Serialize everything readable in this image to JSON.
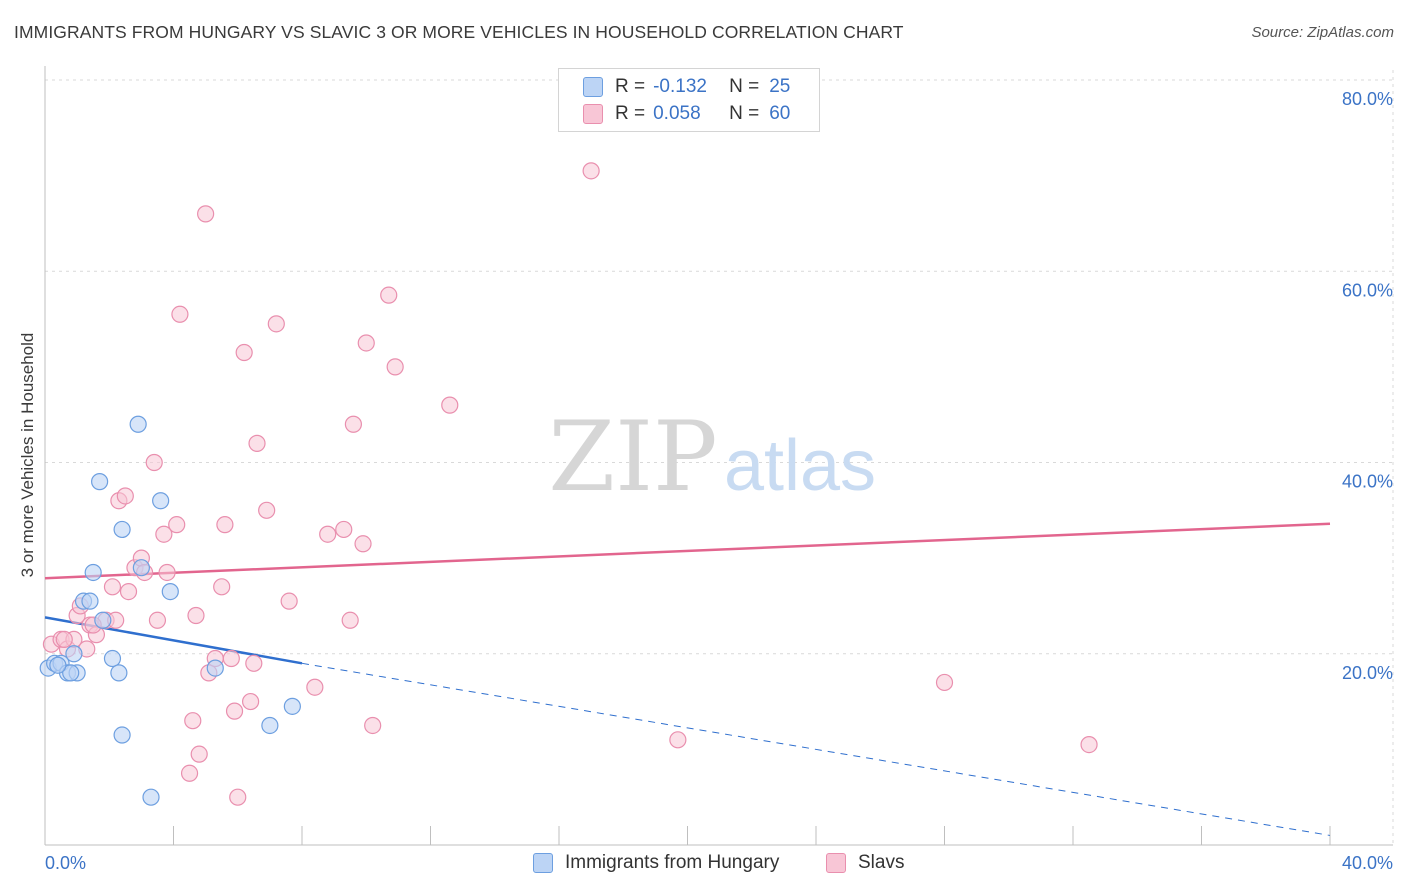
{
  "title": "IMMIGRANTS FROM HUNGARY VS SLAVIC 3 OR MORE VEHICLES IN HOUSEHOLD CORRELATION CHART",
  "source": "Source: ZipAtlas.com",
  "watermark": {
    "zip": "ZIP",
    "atlas": "atlas"
  },
  "legend": {
    "r_label": "R =",
    "n_label": "N =",
    "rows": [
      {
        "r": "-0.132",
        "n": "25"
      },
      {
        "r": "0.058",
        "n": "60"
      }
    ]
  },
  "colors": {
    "hungary_fill": "#bcd4f5",
    "hungary_stroke": "#6d9fe0",
    "hungary_line": "#2f6fce",
    "slavs_fill": "#f8c6d6",
    "slavs_stroke": "#e98fae",
    "slavs_line": "#e2658e",
    "axis_text": "#3b73c6",
    "grid": "#d9d9d9"
  },
  "chart_data": {
    "type": "scatter",
    "title": "IMMIGRANTS FROM HUNGARY VS SLAVIC 3 OR MORE VEHICLES IN HOUSEHOLD CORRELATION CHART",
    "xlabel": "",
    "ylabel": "3 or more Vehicles in Household",
    "xlim": [
      0,
      40
    ],
    "ylim": [
      0,
      80
    ],
    "x_tick_labels": [
      "0.0%",
      "40.0%"
    ],
    "y_ticks": [
      20,
      40,
      60,
      80
    ],
    "y_tick_labels": [
      "20.0%",
      "40.0%",
      "60.0%",
      "80.0%"
    ],
    "grid": true,
    "series": [
      {
        "name": "Immigrants from Hungary",
        "r": -0.132,
        "n": 25,
        "points": [
          [
            0.1,
            18.5
          ],
          [
            0.3,
            19.0
          ],
          [
            0.5,
            19.0
          ],
          [
            0.7,
            18.0
          ],
          [
            0.9,
            20.0
          ],
          [
            1.0,
            18.0
          ],
          [
            1.2,
            25.5
          ],
          [
            1.5,
            28.5
          ],
          [
            1.7,
            38.0
          ],
          [
            1.8,
            23.5
          ],
          [
            2.1,
            19.5
          ],
          [
            2.3,
            18.0
          ],
          [
            2.4,
            11.5
          ],
          [
            2.9,
            44.0
          ],
          [
            3.0,
            29.0
          ],
          [
            3.3,
            5.0
          ],
          [
            3.6,
            36.0
          ],
          [
            3.9,
            26.5
          ],
          [
            5.3,
            18.5
          ],
          [
            7.0,
            12.5
          ],
          [
            7.7,
            14.5
          ],
          [
            2.4,
            33.0
          ],
          [
            1.4,
            25.5
          ],
          [
            0.8,
            18.0
          ],
          [
            0.4,
            18.8
          ]
        ],
        "trend": {
          "x0": 0,
          "y0": 23.8,
          "x1": 8,
          "y1": 19.0,
          "dashed_to": [
            40,
            1.0
          ]
        }
      },
      {
        "name": "Slavs",
        "r": 0.058,
        "n": 60,
        "points": [
          [
            0.2,
            21.0
          ],
          [
            0.5,
            21.5
          ],
          [
            0.7,
            20.5
          ],
          [
            0.9,
            21.5
          ],
          [
            1.0,
            24.0
          ],
          [
            1.1,
            25.0
          ],
          [
            1.3,
            20.5
          ],
          [
            1.4,
            23.0
          ],
          [
            1.6,
            22.0
          ],
          [
            1.9,
            23.5
          ],
          [
            2.1,
            27.0
          ],
          [
            2.2,
            23.5
          ],
          [
            2.3,
            36.0
          ],
          [
            2.5,
            36.5
          ],
          [
            2.6,
            26.5
          ],
          [
            2.8,
            29.0
          ],
          [
            3.0,
            30.0
          ],
          [
            3.1,
            28.5
          ],
          [
            3.4,
            40.0
          ],
          [
            3.5,
            23.5
          ],
          [
            3.7,
            32.5
          ],
          [
            3.8,
            28.5
          ],
          [
            4.1,
            33.5
          ],
          [
            4.2,
            55.5
          ],
          [
            4.6,
            13.0
          ],
          [
            4.7,
            24.0
          ],
          [
            4.8,
            9.5
          ],
          [
            5.0,
            66.0
          ],
          [
            5.1,
            18.0
          ],
          [
            5.3,
            19.5
          ],
          [
            5.5,
            27.0
          ],
          [
            5.6,
            33.5
          ],
          [
            5.8,
            19.5
          ],
          [
            5.9,
            14.0
          ],
          [
            6.0,
            5.0
          ],
          [
            6.2,
            51.5
          ],
          [
            6.4,
            15.0
          ],
          [
            6.5,
            19.0
          ],
          [
            6.6,
            42.0
          ],
          [
            6.9,
            35.0
          ],
          [
            7.2,
            54.5
          ],
          [
            7.6,
            25.5
          ],
          [
            8.4,
            16.5
          ],
          [
            8.8,
            32.5
          ],
          [
            9.3,
            33.0
          ],
          [
            9.5,
            23.5
          ],
          [
            9.6,
            44.0
          ],
          [
            9.9,
            31.5
          ],
          [
            10.0,
            52.5
          ],
          [
            10.2,
            12.5
          ],
          [
            10.7,
            57.5
          ],
          [
            10.9,
            50.0
          ],
          [
            12.6,
            46.0
          ],
          [
            17.0,
            70.5
          ],
          [
            19.7,
            11.0
          ],
          [
            28.0,
            17.0
          ],
          [
            32.5,
            10.5
          ],
          [
            4.5,
            7.5
          ],
          [
            1.5,
            23.0
          ],
          [
            0.6,
            21.5
          ]
        ],
        "trend": {
          "x0": 0,
          "y0": 27.9,
          "x1": 40,
          "y1": 33.6
        }
      }
    ]
  },
  "bottom_legend": {
    "series1": "Immigrants from Hungary",
    "series2": "Slavs"
  }
}
